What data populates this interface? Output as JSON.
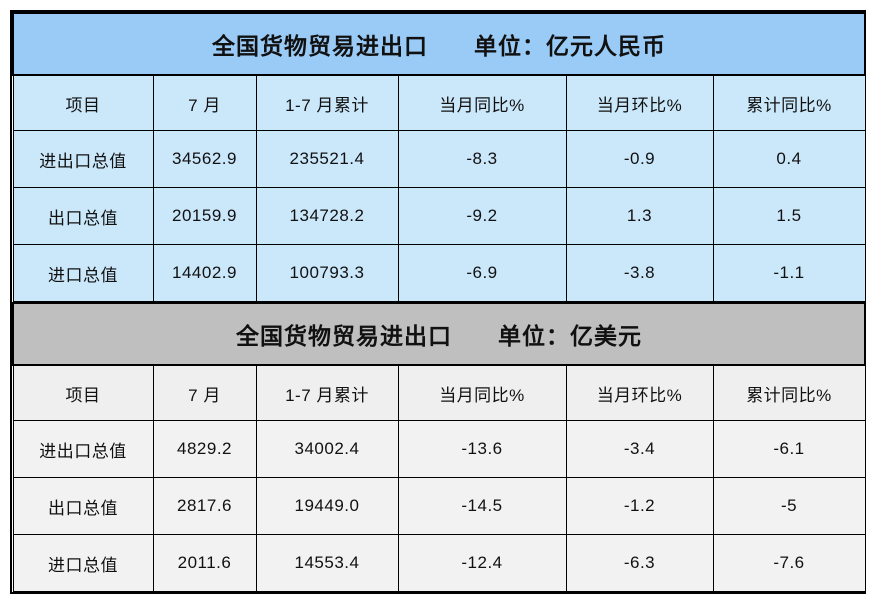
{
  "colors": {
    "title_blue_bg": "#9ACBF6",
    "table1_cell_bg": "#CBE8FB",
    "title_gray_bg": "#BFBFBF",
    "table2_header_bg": "#EFEFEF",
    "table2_cell_bg": "#F2F2F2",
    "border": "#000000",
    "text": "#111111"
  },
  "chart_data": [
    {
      "type": "table",
      "title": "全国货物贸易进出口",
      "unit_label": "单位：亿元人民币",
      "columns": [
        "项目",
        "7 月",
        "1-7 月累计",
        "当月同比%",
        "当月环比%",
        "累计同比%"
      ],
      "rows": [
        [
          "进出口总值",
          "34562.9",
          "235521.4",
          "-8.3",
          "-0.9",
          "0.4"
        ],
        [
          "出口总值",
          "20159.9",
          "134728.2",
          "-9.2",
          "1.3",
          "1.5"
        ],
        [
          "进口总值",
          "14402.9",
          "100793.3",
          "-6.9",
          "-3.8",
          "-1.1"
        ]
      ]
    },
    {
      "type": "table",
      "title": "全国货物贸易进出口",
      "unit_label": "单位：亿美元",
      "columns": [
        "项目",
        "7 月",
        "1-7 月累计",
        "当月同比%",
        "当月环比%",
        "累计同比%"
      ],
      "rows": [
        [
          "进出口总值",
          "4829.2",
          "34002.4",
          "-13.6",
          "-3.4",
          "-6.1"
        ],
        [
          "出口总值",
          "2817.6",
          "19449.0",
          "-14.5",
          "-1.2",
          "-5"
        ],
        [
          "进口总值",
          "2011.6",
          "14553.4",
          "-12.4",
          "-6.3",
          "-7.6"
        ]
      ]
    }
  ]
}
